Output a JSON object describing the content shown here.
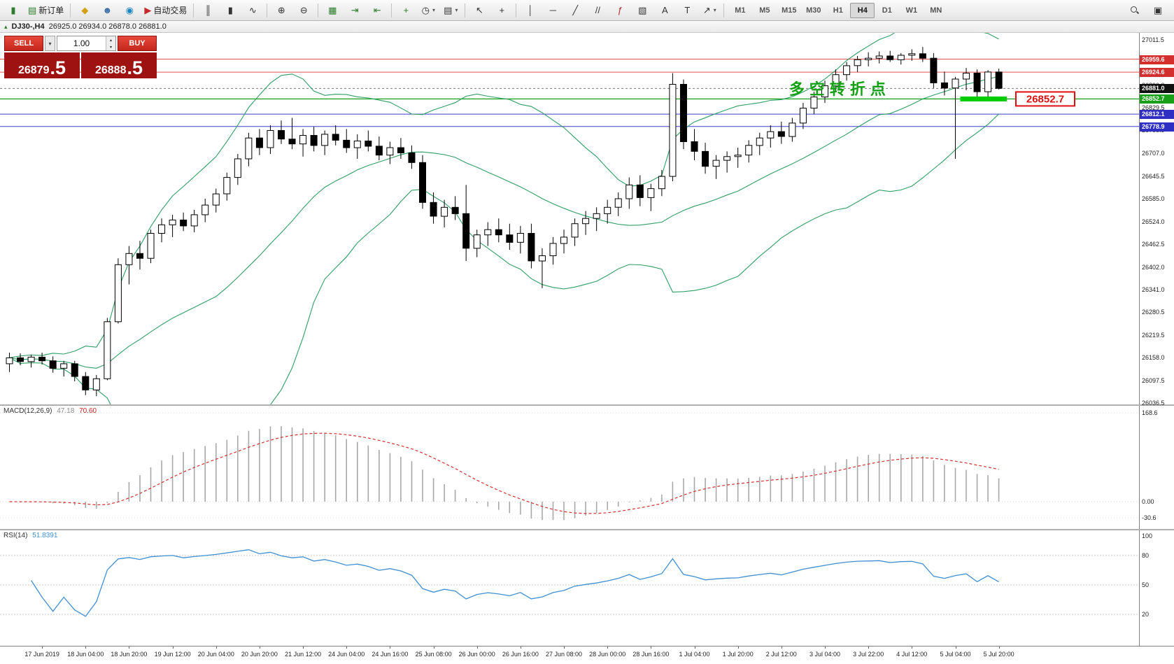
{
  "toolbar": {
    "left_groups": [
      {
        "items": [
          {
            "name": "app-icon",
            "glyph": "▮",
            "glyph_color": "#2b7d2b",
            "interactable": false
          },
          {
            "name": "new-order-button",
            "label": "新订单",
            "glyph": "▤",
            "glyph_color": "#2b7d2b"
          }
        ]
      },
      {
        "items": [
          {
            "name": "market-watch-button",
            "glyph": "◆",
            "glyph_color": "#d4a017"
          },
          {
            "name": "accounts-button",
            "glyph": "☻",
            "glyph_color": "#3b6ea5"
          },
          {
            "name": "community-button",
            "glyph": "◉",
            "glyph_color": "#1c86c8"
          },
          {
            "name": "autotrade-button",
            "label": "自动交易",
            "glyph": "▶",
            "glyph_color": "#c62828"
          }
        ]
      },
      {
        "items": [
          {
            "name": "bar-chart-button",
            "glyph": "║"
          },
          {
            "name": "candlestick-chart-button",
            "glyph": "▮"
          },
          {
            "name": "line-chart-button",
            "glyph": "∿"
          }
        ]
      },
      {
        "items": [
          {
            "name": "zoom-in-button",
            "glyph": "⊕"
          },
          {
            "name": "zoom-out-button",
            "glyph": "⊖"
          }
        ]
      },
      {
        "items": [
          {
            "name": "tile-windows-button",
            "glyph": "▦",
            "glyph_color": "#2b7d2b"
          },
          {
            "name": "auto-scroll-button",
            "glyph": "⇥",
            "glyph_color": "#2b7d2b"
          },
          {
            "name": "chart-shift-button",
            "glyph": "⇤",
            "glyph_color": "#2b7d2b"
          }
        ]
      },
      {
        "items": [
          {
            "name": "indicators-button",
            "glyph": "+",
            "glyph_color": "#2b7d2b"
          },
          {
            "name": "periods-button",
            "glyph": "◷",
            "caret": true
          },
          {
            "name": "templates-button",
            "glyph": "▤",
            "caret": true
          }
        ]
      },
      {
        "items": [
          {
            "name": "cursor-button",
            "glyph": "↖"
          },
          {
            "name": "crosshair-button",
            "glyph": "+"
          }
        ]
      },
      {
        "items": [
          {
            "name": "vertical-line-button",
            "glyph": "│"
          },
          {
            "name": "horizontal-line-button",
            "glyph": "─"
          },
          {
            "name": "trendline-button",
            "glyph": "╱"
          },
          {
            "name": "equidistant-channel-button",
            "glyph": "//"
          },
          {
            "name": "fibonacci-button",
            "glyph": "ƒ",
            "glyph_color": "#b03030"
          },
          {
            "name": "shapes-button",
            "glyph": "▧"
          },
          {
            "name": "text-button",
            "glyph": "A"
          },
          {
            "name": "label-button",
            "glyph": "T"
          },
          {
            "name": "arrows-button",
            "glyph": "↗",
            "caret": true
          }
        ]
      }
    ],
    "timeframes": [
      "M1",
      "M5",
      "M15",
      "M30",
      "H1",
      "H4",
      "D1",
      "W1",
      "MN"
    ],
    "active_timeframe": "H4",
    "right_items": [
      {
        "name": "search-button",
        "icon_css": "magnifier"
      },
      {
        "name": "new-window-button",
        "glyph": "▣"
      }
    ]
  },
  "chart": {
    "symbol_period": "DJ30-,H4",
    "ohlc_text": "26925.0 26934.0 26878.0 26881.0"
  },
  "trade_panel": {
    "sell_label": "SELL",
    "buy_label": "BUY",
    "volume": "1.00",
    "bid_main": "26879",
    "bid_pips": ".5",
    "ask_main": "26888",
    "ask_pips": ".5"
  },
  "chart_data": {
    "type": "candlestick",
    "symbol": "DJ30-",
    "period": "H4",
    "candles": [
      [
        26142,
        26172,
        26120,
        26158
      ],
      [
        26158,
        26170,
        26138,
        26148
      ],
      [
        26148,
        26166,
        26132,
        26160
      ],
      [
        26160,
        26172,
        26140,
        26150
      ],
      [
        26150,
        26162,
        26118,
        26130
      ],
      [
        26130,
        26150,
        26108,
        26142
      ],
      [
        26142,
        26150,
        26095,
        26108
      ],
      [
        26108,
        26120,
        26058,
        26072
      ],
      [
        26072,
        26112,
        26055,
        26102
      ],
      [
        26102,
        26265,
        26098,
        26255
      ],
      [
        26255,
        26425,
        26250,
        26408
      ],
      [
        26408,
        26458,
        26355,
        26438
      ],
      [
        26438,
        26472,
        26395,
        26425
      ],
      [
        26425,
        26502,
        26412,
        26492
      ],
      [
        26492,
        26532,
        26468,
        26515
      ],
      [
        26515,
        26542,
        26482,
        26528
      ],
      [
        26528,
        26548,
        26498,
        26512
      ],
      [
        26512,
        26555,
        26495,
        26542
      ],
      [
        26542,
        26585,
        26522,
        26568
      ],
      [
        26568,
        26612,
        26548,
        26598
      ],
      [
        26598,
        26655,
        26580,
        26642
      ],
      [
        26642,
        26705,
        26622,
        26692
      ],
      [
        26692,
        26762,
        26672,
        26748
      ],
      [
        26748,
        26772,
        26702,
        26722
      ],
      [
        26722,
        26782,
        26705,
        26768
      ],
      [
        26768,
        26795,
        26732,
        26745
      ],
      [
        26745,
        26802,
        26718,
        26732
      ],
      [
        26732,
        26772,
        26698,
        26755
      ],
      [
        26755,
        26778,
        26712,
        26728
      ],
      [
        26728,
        26768,
        26702,
        26758
      ],
      [
        26758,
        26782,
        26728,
        26742
      ],
      [
        26742,
        26772,
        26708,
        26722
      ],
      [
        26722,
        26758,
        26692,
        26740
      ],
      [
        26740,
        26768,
        26712,
        26726
      ],
      [
        26726,
        26752,
        26688,
        26702
      ],
      [
        26702,
        26738,
        26678,
        26722
      ],
      [
        26722,
        26748,
        26692,
        26708
      ],
      [
        26708,
        26728,
        26665,
        26682
      ],
      [
        26682,
        26702,
        26558,
        26575
      ],
      [
        26575,
        26602,
        26518,
        26538
      ],
      [
        26538,
        26582,
        26508,
        26562
      ],
      [
        26562,
        26592,
        26528,
        26545
      ],
      [
        26545,
        26622,
        26418,
        26452
      ],
      [
        26452,
        26502,
        26428,
        26488
      ],
      [
        26488,
        26522,
        26458,
        26502
      ],
      [
        26502,
        26532,
        26468,
        26488
      ],
      [
        26488,
        26518,
        26448,
        26468
      ],
      [
        26468,
        26512,
        26438,
        26492
      ],
      [
        26492,
        26518,
        26398,
        26418
      ],
      [
        26418,
        26452,
        26345,
        26432
      ],
      [
        26432,
        26482,
        26408,
        26465
      ],
      [
        26465,
        26502,
        26438,
        26482
      ],
      [
        26482,
        26532,
        26458,
        26518
      ],
      [
        26518,
        26552,
        26488,
        26532
      ],
      [
        26532,
        26562,
        26498,
        26545
      ],
      [
        26545,
        26582,
        26518,
        26562
      ],
      [
        26562,
        26602,
        26538,
        26585
      ],
      [
        26585,
        26642,
        26558,
        26622
      ],
      [
        26622,
        26648,
        26565,
        26588
      ],
      [
        26588,
        26625,
        26552,
        26612
      ],
      [
        26612,
        26662,
        26592,
        26645
      ],
      [
        26645,
        26922,
        26632,
        26892
      ],
      [
        26892,
        26905,
        26718,
        26738
      ],
      [
        26738,
        26772,
        26688,
        26712
      ],
      [
        26712,
        26735,
        26652,
        26672
      ],
      [
        26672,
        26702,
        26638,
        26688
      ],
      [
        26688,
        26712,
        26655,
        26698
      ],
      [
        26698,
        26722,
        26668,
        26702
      ],
      [
        26702,
        26742,
        26682,
        26728
      ],
      [
        26728,
        26762,
        26702,
        26748
      ],
      [
        26748,
        26782,
        26722,
        26765
      ],
      [
        26765,
        26792,
        26732,
        26752
      ],
      [
        26752,
        26802,
        26738,
        26788
      ],
      [
        26788,
        26842,
        26772,
        26828
      ],
      [
        26828,
        26872,
        26812,
        26858
      ],
      [
        26858,
        26902,
        26842,
        26888
      ],
      [
        26888,
        26932,
        26872,
        26918
      ],
      [
        26918,
        26952,
        26902,
        26942
      ],
      [
        26942,
        26968,
        26925,
        26958
      ],
      [
        26958,
        26978,
        26940,
        26962
      ],
      [
        26962,
        26980,
        26948,
        26968
      ],
      [
        26968,
        26982,
        26952,
        26958
      ],
      [
        26958,
        26976,
        26945,
        26970
      ],
      [
        26970,
        26986,
        26955,
        26974
      ],
      [
        26974,
        26992,
        26952,
        26962
      ],
      [
        26962,
        26976,
        26882,
        26896
      ],
      [
        26896,
        26926,
        26862,
        26882
      ],
      [
        26882,
        26912,
        26692,
        26906
      ],
      [
        26906,
        26936,
        26876,
        26922
      ],
      [
        26922,
        26932,
        26852,
        26872
      ],
      [
        26872,
        26930,
        26858,
        26925
      ],
      [
        26925,
        26934,
        26878,
        26881
      ]
    ],
    "x_labels": [
      "17 Jun 2019",
      "18 Jun 04:00",
      "18 Jun 20:00",
      "19 Jun 12:00",
      "20 Jun 04:00",
      "20 Jun 20:00",
      "21 Jun 12:00",
      "24 Jun 04:00",
      "24 Jun 16:00",
      "25 Jun 08:00",
      "26 Jun 00:00",
      "26 Jun 16:00",
      "27 Jun 08:00",
      "28 Jun 00:00",
      "28 Jun 16:00",
      "1 Jul 04:00",
      "1 Jul 20:00",
      "2 Jul 12:00",
      "3 Jul 04:00",
      "3 Jul 22:00",
      "4 Jul 12:00",
      "5 Jul 04:00",
      "5 Jul 20:00"
    ],
    "y_axis": [
      "27011.5",
      "26950.5",
      "26890.0",
      "26829.5",
      "26768.9",
      "26707.0",
      "26645.5",
      "26585.0",
      "26524.0",
      "26462.5",
      "26402.0",
      "26341.0",
      "26280.5",
      "26219.5",
      "26158.0",
      "26097.5",
      "26036.5"
    ],
    "price_tags": [
      {
        "text": "26959.6",
        "price": 26959.6,
        "bg": "#d32f2f"
      },
      {
        "text": "26924.6",
        "price": 26924.6,
        "bg": "#d32f2f"
      },
      {
        "text": "26881.0",
        "price": 26881.0,
        "bg": "#111111"
      },
      {
        "text": "26852.7",
        "price": 26852.7,
        "bg": "#18a018"
      },
      {
        "text": "26812.1",
        "price": 26812.1,
        "bg": "#2f2fc4"
      },
      {
        "text": "26778.9",
        "price": 26778.9,
        "bg": "#2f2fc4"
      }
    ],
    "hlines": [
      {
        "price": 26959.6,
        "color": "#e05050",
        "width": 1
      },
      {
        "price": 26924.6,
        "color": "#e05050",
        "width": 1
      },
      {
        "price": 26881.0,
        "color": "#777777",
        "width": 1,
        "dash": "3,3"
      },
      {
        "price": 26852.7,
        "color": "#18a018",
        "width": 1.2
      },
      {
        "price": 26812.1,
        "color": "#3c3cd0",
        "width": 1
      },
      {
        "price": 26778.9,
        "color": "#3c3cd0",
        "width": 1
      }
    ],
    "highlight": {
      "price": 26852.7,
      "from_bar": 88,
      "to_bar": 91,
      "color": "#00cc00"
    },
    "price_flag": {
      "text": "26852.7",
      "color": "#e01010"
    },
    "annotation": {
      "text": "多空转折点",
      "color": "#12a112",
      "bar": 72,
      "price": 26878
    },
    "bollinger": {
      "period": 20,
      "deviation": 2,
      "color": "#2f9e64"
    },
    "indicators": [
      {
        "name": "MACD",
        "label": "MACD(12,26,9)",
        "values": [
          "47.18",
          "70.60"
        ],
        "axis": [
          {
            "text": "168.6",
            "value": 168.6
          },
          {
            "text": "0.00",
            "value": 0
          },
          {
            "text": "-30.6",
            "value": -30.6
          }
        ],
        "histogram_color": "#a8a8a8",
        "signal_color": "#d32f2f",
        "range": [
          -30.6,
          168.6
        ]
      },
      {
        "name": "RSI",
        "label": "RSI(14)",
        "value": "51.8391",
        "axis": [
          {
            "text": "100",
            "value": 100
          },
          {
            "text": "80",
            "value": 80
          },
          {
            "text": "50",
            "value": 50
          },
          {
            "text": "20",
            "value": 20
          }
        ],
        "levels": [
          80,
          50,
          20
        ],
        "line_color": "#3f8fd2",
        "range": [
          0,
          100
        ]
      }
    ]
  }
}
